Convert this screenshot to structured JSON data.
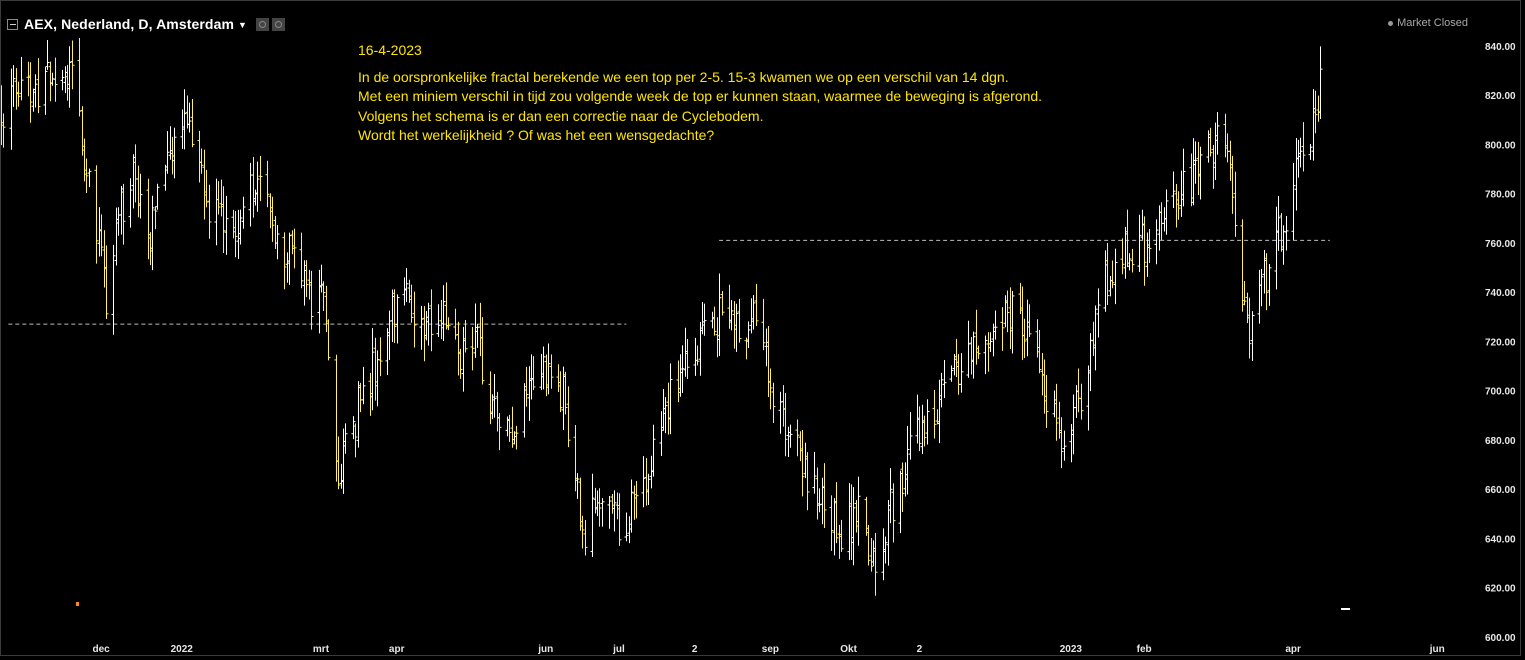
{
  "header": {
    "title": "AEX, Nederland, D, Amsterdam",
    "status": "Market Closed"
  },
  "annotation": {
    "date": "16-4-2023",
    "lines": [
      "In de oorspronkelijke fractal berekende we een top per 2-5. 15-3 kwamen we op een verschil van 14 dgn.",
      "Met een miniem verschil in tijd zou volgende week de top er kunnen staan, waarmee de beweging is afgerond.",
      "Volgens het schema is er dan een correctie naar de Cyclebodem.",
      "Wordt het werkelijkheid ? Of was het een wensgedachte?"
    ]
  },
  "colors": {
    "background": "#000000",
    "bar_up": "#ffffff",
    "bar_down": "#ffee66",
    "annotation": "#ffe600",
    "reference_line": "#bbbbbb"
  },
  "chart_data": {
    "type": "ohlc",
    "y_axis": {
      "range": [
        600,
        846
      ],
      "ticks": [
        "840.00",
        "820.00",
        "800.00",
        "780.00",
        "760.00",
        "740.00",
        "720.00",
        "700.00",
        "680.00",
        "660.00",
        "640.00",
        "620.00",
        "600.00"
      ],
      "position": "right"
    },
    "x_axis": {
      "range": [
        "2021-10-21",
        "2023-06-14"
      ],
      "ticks": [
        {
          "label": "dec",
          "date": "2021-12-01"
        },
        {
          "label": "2022",
          "date": "2022-01-03"
        },
        {
          "label": "mrt",
          "date": "2022-03-01"
        },
        {
          "label": "apr",
          "date": "2022-04-01"
        },
        {
          "label": "jun",
          "date": "2022-06-01"
        },
        {
          "label": "jul",
          "date": "2022-07-01"
        },
        {
          "label": "2",
          "date": "2022-08-01"
        },
        {
          "label": "sep",
          "date": "2022-09-01"
        },
        {
          "label": "Okt",
          "date": "2022-10-03"
        },
        {
          "label": "2",
          "date": "2022-11-01"
        },
        {
          "label": "2023",
          "date": "2023-01-02"
        },
        {
          "label": "feb",
          "date": "2023-02-01"
        },
        {
          "label": "apr",
          "date": "2023-04-03"
        },
        {
          "label": "jun",
          "date": "2023-06-01"
        }
      ]
    },
    "reference_lines": [
      {
        "value": 727,
        "from": "2021-10-24",
        "to": "2022-07-04"
      },
      {
        "value": 761,
        "from": "2022-08-11",
        "to": "2023-04-18"
      }
    ],
    "anchors": [
      {
        "date": "2021-10-21",
        "close": 815
      },
      {
        "date": "2021-11-05",
        "close": 824
      },
      {
        "date": "2021-11-18",
        "close": 829
      },
      {
        "date": "2021-11-26",
        "close": 784
      },
      {
        "date": "2021-12-01",
        "close": 752
      },
      {
        "date": "2021-12-03",
        "close": 733
      },
      {
        "date": "2021-12-08",
        "close": 770
      },
      {
        "date": "2021-12-14",
        "close": 790
      },
      {
        "date": "2021-12-20",
        "close": 762
      },
      {
        "date": "2021-12-28",
        "close": 790
      },
      {
        "date": "2022-01-05",
        "close": 809
      },
      {
        "date": "2022-01-12",
        "close": 780
      },
      {
        "date": "2022-01-24",
        "close": 762
      },
      {
        "date": "2022-02-03",
        "close": 790
      },
      {
        "date": "2022-02-11",
        "close": 765
      },
      {
        "date": "2022-02-18",
        "close": 750
      },
      {
        "date": "2022-02-24",
        "close": 735
      },
      {
        "date": "2022-03-01",
        "close": 740
      },
      {
        "date": "2022-03-04",
        "close": 718
      },
      {
        "date": "2022-03-08",
        "close": 663
      },
      {
        "date": "2022-03-15",
        "close": 690
      },
      {
        "date": "2022-03-21",
        "close": 705
      },
      {
        "date": "2022-03-29",
        "close": 728
      },
      {
        "date": "2022-04-05",
        "close": 738
      },
      {
        "date": "2022-04-12",
        "close": 728
      },
      {
        "date": "2022-04-21",
        "close": 730
      },
      {
        "date": "2022-04-28",
        "close": 715
      },
      {
        "date": "2022-05-03",
        "close": 722
      },
      {
        "date": "2022-05-10",
        "close": 690
      },
      {
        "date": "2022-05-19",
        "close": 675
      },
      {
        "date": "2022-05-25",
        "close": 705
      },
      {
        "date": "2022-06-02",
        "close": 712
      },
      {
        "date": "2022-06-09",
        "close": 695
      },
      {
        "date": "2022-06-16",
        "close": 640
      },
      {
        "date": "2022-06-24",
        "close": 658
      },
      {
        "date": "2022-07-01",
        "close": 645
      },
      {
        "date": "2022-07-05",
        "close": 650
      },
      {
        "date": "2022-07-13",
        "close": 670
      },
      {
        "date": "2022-07-22",
        "close": 700
      },
      {
        "date": "2022-07-29",
        "close": 715
      },
      {
        "date": "2022-08-05",
        "close": 720
      },
      {
        "date": "2022-08-12",
        "close": 733
      },
      {
        "date": "2022-08-18",
        "close": 730
      },
      {
        "date": "2022-08-26",
        "close": 728
      },
      {
        "date": "2022-09-01",
        "close": 705
      },
      {
        "date": "2022-09-09",
        "close": 680
      },
      {
        "date": "2022-09-16",
        "close": 665
      },
      {
        "date": "2022-09-23",
        "close": 660
      },
      {
        "date": "2022-09-30",
        "close": 638
      },
      {
        "date": "2022-10-07",
        "close": 655
      },
      {
        "date": "2022-10-13",
        "close": 630
      },
      {
        "date": "2022-10-19",
        "close": 650
      },
      {
        "date": "2022-10-26",
        "close": 670
      },
      {
        "date": "2022-10-31",
        "close": 680
      },
      {
        "date": "2022-11-04",
        "close": 685
      },
      {
        "date": "2022-11-10",
        "close": 700
      },
      {
        "date": "2022-11-18",
        "close": 713
      },
      {
        "date": "2022-11-25",
        "close": 720
      },
      {
        "date": "2022-12-02",
        "close": 728
      },
      {
        "date": "2022-12-09",
        "close": 732
      },
      {
        "date": "2022-12-16",
        "close": 718
      },
      {
        "date": "2022-12-23",
        "close": 700
      },
      {
        "date": "2022-12-30",
        "close": 680
      },
      {
        "date": "2023-01-06",
        "close": 700
      },
      {
        "date": "2023-01-13",
        "close": 735
      },
      {
        "date": "2023-01-20",
        "close": 752
      },
      {
        "date": "2023-01-27",
        "close": 758
      },
      {
        "date": "2023-02-03",
        "close": 762
      },
      {
        "date": "2023-02-10",
        "close": 770
      },
      {
        "date": "2023-02-17",
        "close": 782
      },
      {
        "date": "2023-02-24",
        "close": 793
      },
      {
        "date": "2023-03-03",
        "close": 800
      },
      {
        "date": "2023-03-08",
        "close": 795
      },
      {
        "date": "2023-03-10",
        "close": 760
      },
      {
        "date": "2023-03-14",
        "close": 735
      },
      {
        "date": "2023-03-16",
        "close": 722
      },
      {
        "date": "2023-03-20",
        "close": 740
      },
      {
        "date": "2023-03-24",
        "close": 748
      },
      {
        "date": "2023-03-29",
        "close": 765
      },
      {
        "date": "2023-04-04",
        "close": 790
      },
      {
        "date": "2023-04-11",
        "close": 810
      },
      {
        "date": "2023-04-14",
        "close": 826
      }
    ]
  }
}
